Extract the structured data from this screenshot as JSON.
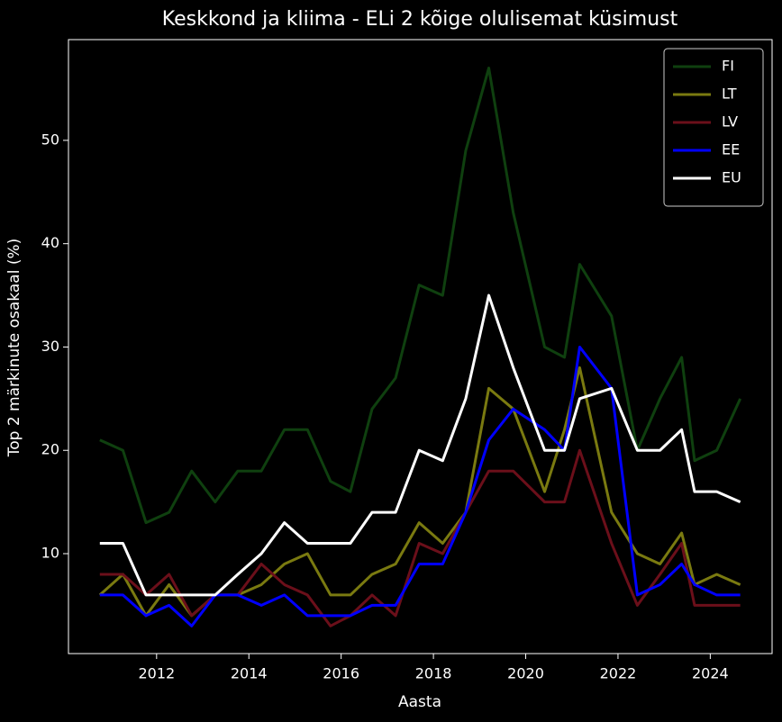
{
  "chart_data": {
    "type": "line",
    "title": "Keskkond ja kliima - ELi 2 kõige olulisemat küsimust",
    "xlabel": "Aasta",
    "ylabel": "Top 2 märkinute osakaal (%)",
    "x": [
      2010.77,
      2011.27,
      2011.77,
      2012.27,
      2012.76,
      2013.27,
      2013.76,
      2014.27,
      2014.77,
      2015.27,
      2015.77,
      2016.2,
      2016.67,
      2017.18,
      2017.69,
      2018.2,
      2018.7,
      2019.2,
      2019.73,
      2020.41,
      2020.84,
      2021.17,
      2021.86,
      2022.42,
      2022.91,
      2023.38,
      2023.66,
      2024.14,
      2024.65
    ],
    "series": [
      {
        "name": "FI",
        "color": "#0f400f",
        "values": [
          21,
          20,
          13,
          14,
          18,
          15,
          18,
          18,
          22,
          22,
          17,
          16,
          24,
          27,
          36,
          35,
          49,
          57,
          43,
          30,
          29,
          38,
          33,
          20,
          25,
          29,
          19,
          20,
          25
        ]
      },
      {
        "name": "LT",
        "color": "#7a7a10",
        "values": [
          6,
          8,
          4,
          7,
          4,
          6,
          6,
          7,
          9,
          10,
          6,
          6,
          8,
          9,
          13,
          11,
          14,
          26,
          24,
          16,
          22,
          28,
          14,
          10,
          9,
          12,
          7,
          8,
          7
        ]
      },
      {
        "name": "LV",
        "color": "#6b0f1a",
        "values": [
          8,
          8,
          6,
          8,
          4,
          6,
          6,
          9,
          7,
          6,
          3,
          4,
          6,
          4,
          11,
          10,
          14,
          18,
          18,
          15,
          15,
          20,
          11,
          5,
          8,
          11,
          5,
          5,
          5
        ]
      },
      {
        "name": "EE",
        "color": "#0000ff",
        "values": [
          6,
          6,
          4,
          5,
          3,
          6,
          6,
          5,
          6,
          4,
          4,
          4,
          5,
          5,
          9,
          9,
          14,
          21,
          24,
          22,
          20,
          30,
          26,
          6,
          7,
          9,
          7,
          6,
          6
        ]
      },
      {
        "name": "EU",
        "color": "#ffffff",
        "values": [
          11,
          11,
          6,
          6,
          6,
          6,
          8,
          10,
          13,
          11,
          11,
          11,
          14,
          14,
          20,
          19,
          25,
          35,
          28,
          20,
          20,
          25,
          26,
          20,
          20,
          22,
          16,
          16,
          15
        ]
      }
    ],
    "xlim": [
      2010.09,
      2025.34
    ],
    "xticks": [
      2012,
      2014,
      2016,
      2018,
      2020,
      2022,
      2024
    ],
    "ylim": [
      0.33,
      59.75
    ],
    "yticks": [
      10,
      20,
      30,
      40,
      50
    ],
    "legend": "upper right"
  }
}
